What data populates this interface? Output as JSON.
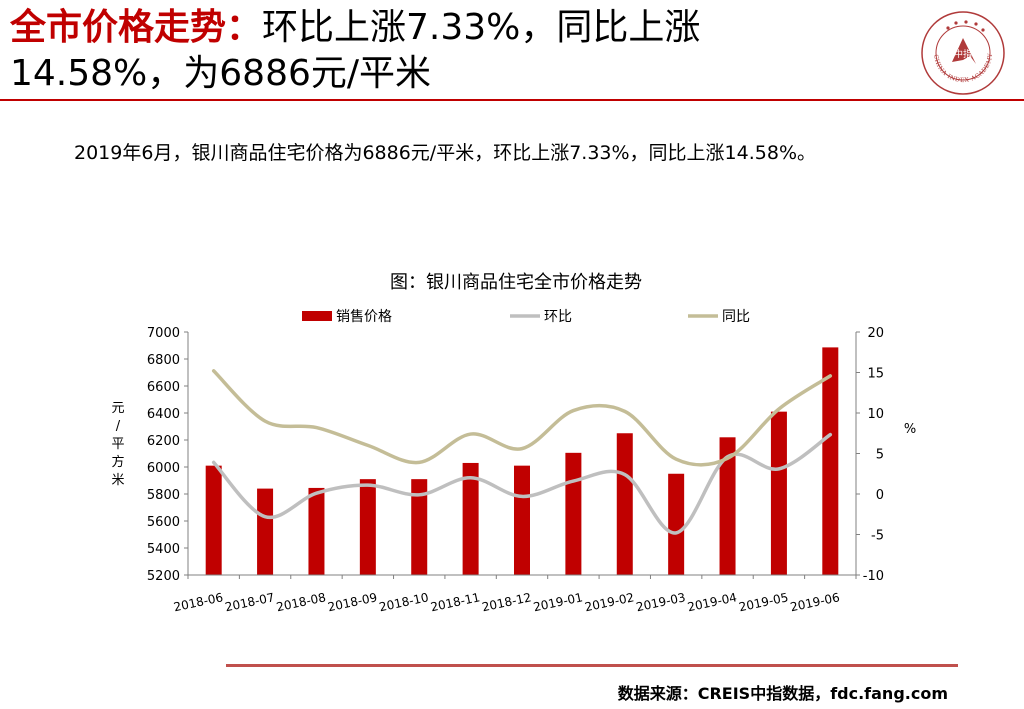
{
  "header": {
    "title_strong": "全市价格走势：",
    "title_line1_rest": "环比上涨7.33%，同比上涨",
    "title_line2": "14.58%，为6886元/平米"
  },
  "logo": {
    "center_text": "中指",
    "ring_text": "CHINA INDEX ACADEMY"
  },
  "summary": "2019年6月，银川商品住宅价格为6886元/平米，环比上涨7.33%，同比上涨14.58%。",
  "chart_data": {
    "type": "bar",
    "title": "图：银川商品住宅全市价格走势",
    "categories": [
      "2018-06",
      "2018-07",
      "2018-08",
      "2018-09",
      "2018-10",
      "2018-11",
      "2018-12",
      "2019-01",
      "2019-02",
      "2019-03",
      "2019-04",
      "2019-05",
      "2019-06"
    ],
    "ylabel": "元/平方米",
    "y2label": "%",
    "ylim": [
      5200,
      7000
    ],
    "yticks": [
      5200,
      5400,
      5600,
      5800,
      6000,
      6200,
      6400,
      6600,
      6800,
      7000
    ],
    "y2lim": [
      -10,
      20
    ],
    "y2ticks": [
      -10,
      -5,
      0,
      5,
      10,
      15,
      20
    ],
    "legend_position": "top",
    "grid": false,
    "series": [
      {
        "name": "销售价格",
        "type": "bar",
        "axis": "left",
        "color": "#c00000",
        "values": [
          6010,
          5840,
          5845,
          5910,
          5910,
          6030,
          6010,
          6105,
          6250,
          5950,
          6220,
          6410,
          6886
        ]
      },
      {
        "name": "环比",
        "type": "line",
        "axis": "right",
        "color": "#bfbfbf",
        "values": [
          3.9,
          -2.8,
          0.1,
          1.1,
          -0.1,
          2.0,
          -0.3,
          1.6,
          2.4,
          -4.8,
          4.6,
          3.1,
          7.33
        ]
      },
      {
        "name": "同比",
        "type": "line",
        "axis": "right",
        "color": "#c4bd97",
        "values": [
          15.2,
          9.0,
          8.2,
          6.0,
          3.9,
          7.4,
          5.6,
          10.3,
          10.2,
          4.3,
          4.4,
          10.5,
          14.58
        ]
      }
    ]
  },
  "footer": {
    "source": "数据来源：CREIS中指数据，fdc.fang.com"
  }
}
